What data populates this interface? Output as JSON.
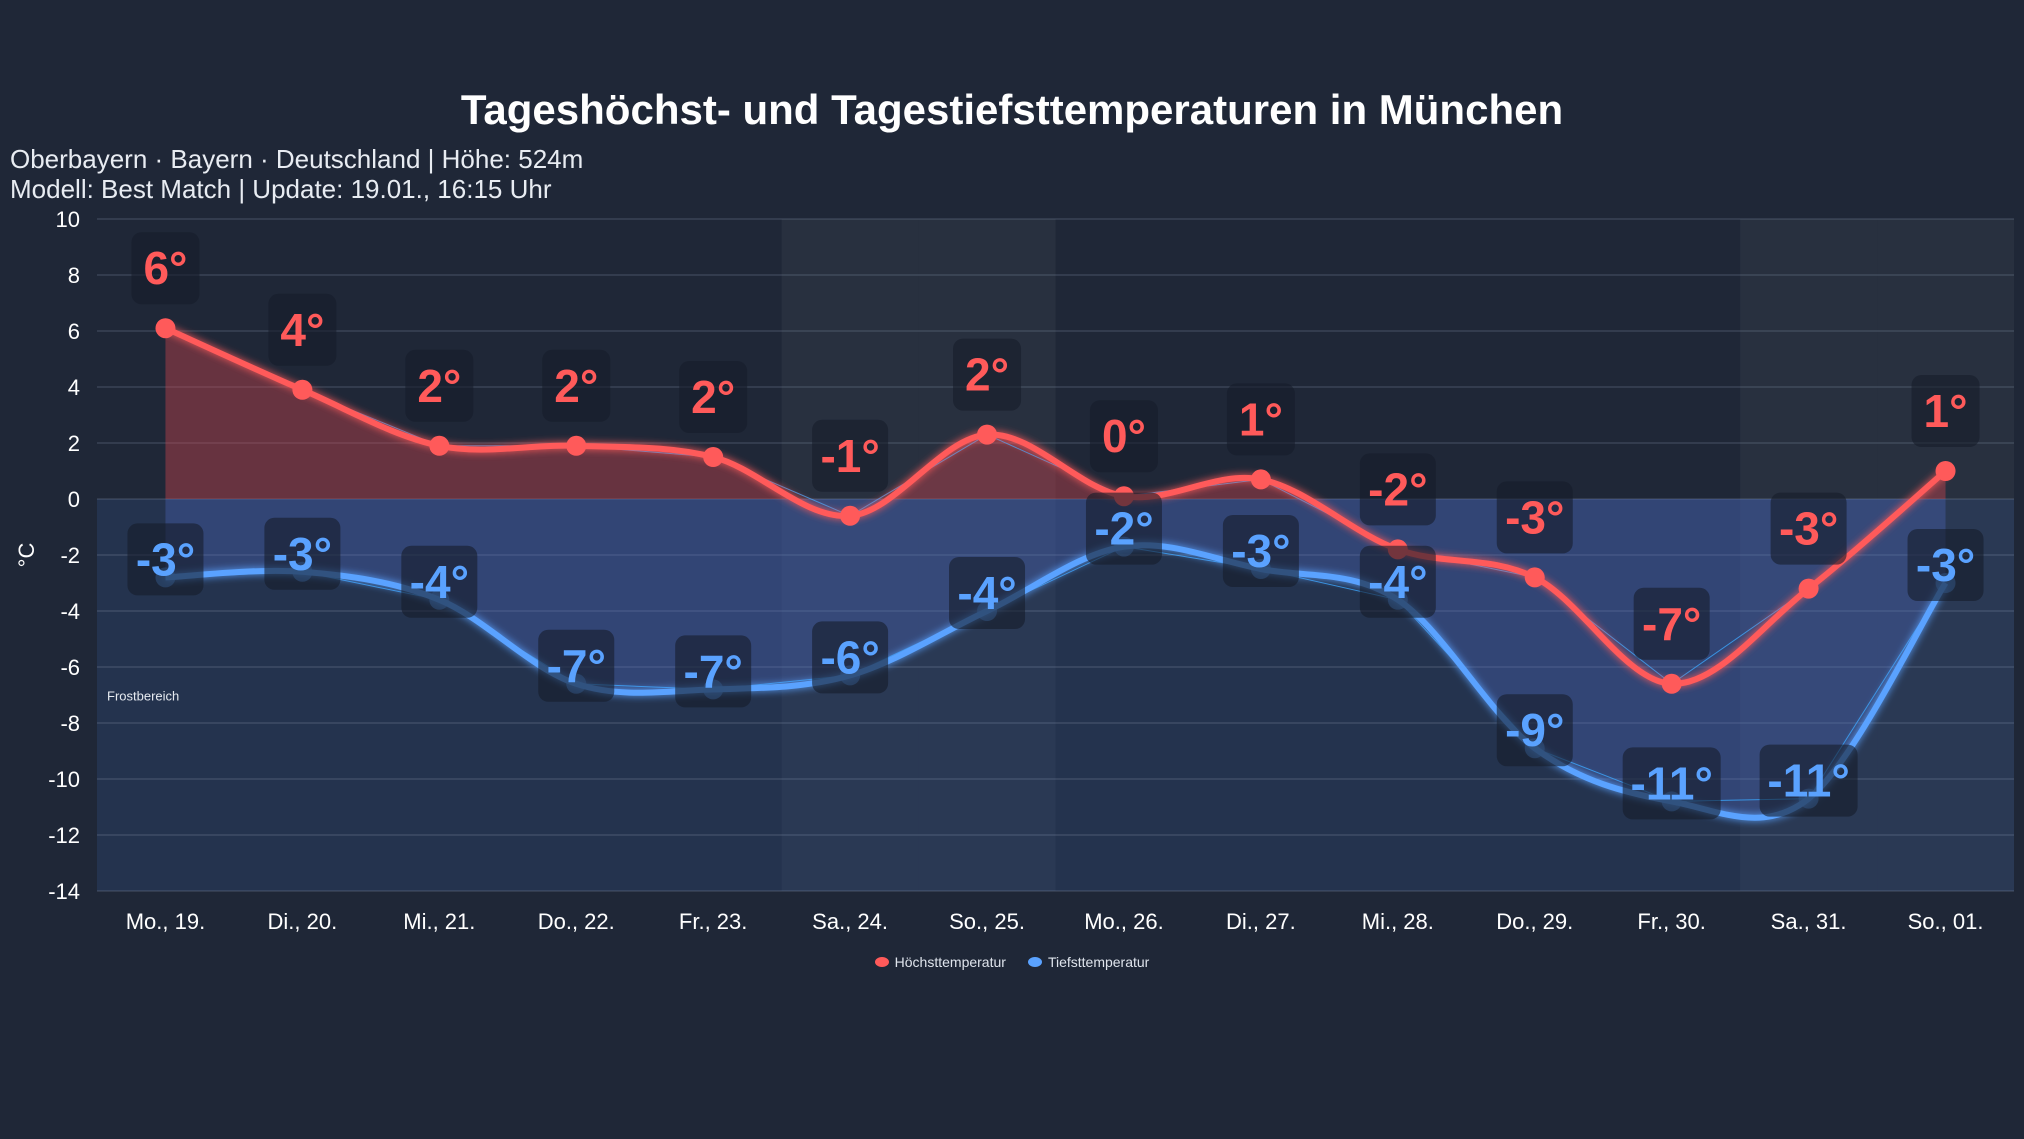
{
  "header": {
    "title": "Tageshöchst- und Tagestiefsttemperaturen in München",
    "subtitle_line1": "Oberbayern · Bayern · Deutschland | Höhe: 524m",
    "subtitle_line2": "Modell: Best Match | Update: 19.01., 16:15 Uhr"
  },
  "chart_data": {
    "type": "line",
    "title": "Tageshöchst- und Tagestiefsttemperaturen in München",
    "xlabel": "",
    "ylabel": "°C",
    "ylim": [
      -14,
      10
    ],
    "yticks": [
      10,
      8,
      6,
      4,
      2,
      0,
      -2,
      -4,
      -6,
      -8,
      -10,
      -12,
      -14
    ],
    "grid": true,
    "legend_position": "bottom",
    "categories": [
      "Mo., 19.",
      "Di., 20.",
      "Mi., 21.",
      "Do., 22.",
      "Fr., 23.",
      "Sa., 24.",
      "So., 25.",
      "Mo., 26.",
      "Di., 27.",
      "Mi., 28.",
      "Do., 29.",
      "Fr., 30.",
      "Sa., 31.",
      "So., 01."
    ],
    "weekend_shaded": [
      "Sa., 24.",
      "So., 25.",
      "Sa., 31.",
      "So., 01."
    ],
    "annotation": "Frostbereich",
    "series": [
      {
        "name": "Höchsttemperatur",
        "color": "#ff5a5a",
        "values": [
          6.1,
          3.9,
          1.9,
          1.9,
          1.5,
          -0.6,
          2.3,
          0.1,
          0.7,
          -1.8,
          -2.8,
          -6.6,
          -3.2,
          1.0
        ],
        "labels": [
          "6°",
          "4°",
          "2°",
          "2°",
          "2°",
          "-1°",
          "2°",
          "0°",
          "1°",
          "-2°",
          "-3°",
          "-7°",
          "-3°",
          "1°"
        ]
      },
      {
        "name": "Tiefsttemperatur",
        "color": "#5aa2ff",
        "values": [
          -2.8,
          -2.6,
          -3.6,
          -6.6,
          -6.8,
          -6.3,
          -4.0,
          -1.7,
          -2.5,
          -3.6,
          -8.9,
          -10.8,
          -10.7,
          -3.0
        ],
        "labels": [
          "-3°",
          "-3°",
          "-4°",
          "-7°",
          "-7°",
          "-6°",
          "-4°",
          "-2°",
          "-3°",
          "-4°",
          "-9°",
          "-11°",
          "-11°",
          "-3°"
        ]
      }
    ]
  }
}
